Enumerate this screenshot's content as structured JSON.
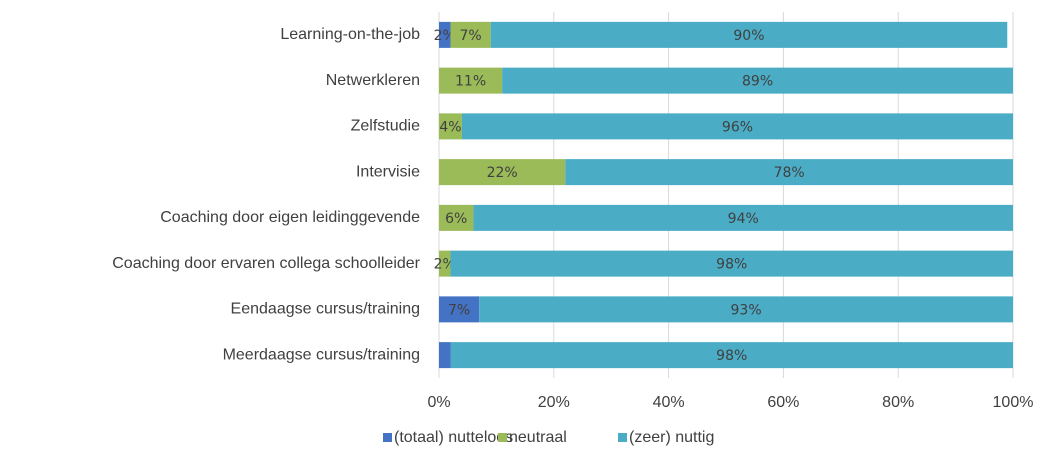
{
  "chart_data": {
    "type": "stacked-bar-horizontal",
    "categories": [
      "Learning-on-the-job",
      "Netwerkleren",
      "Zelfstudie",
      "Intervisie",
      "Coaching door eigen leidinggevende",
      "Coaching door ervaren collega schoolleider",
      "Eendaagse cursus/training",
      "Meerdaagse cursus/training"
    ],
    "series": [
      {
        "name": "(totaal) nutteloos",
        "color": "#4472c4",
        "values": [
          2,
          0,
          0,
          0,
          0,
          0,
          7,
          2
        ],
        "value_labels": [
          "2%",
          null,
          null,
          null,
          null,
          null,
          "7%",
          null
        ]
      },
      {
        "name": "neutraal",
        "color": "#9bbb59",
        "values": [
          7,
          11,
          4,
          22,
          6,
          2,
          0,
          0
        ],
        "value_labels": [
          "7%",
          "11%",
          "4%",
          "22%",
          "6%",
          "2%",
          null,
          null
        ]
      },
      {
        "name": "(zeer) nuttig",
        "color": "#4bacc6",
        "values": [
          90,
          89,
          96,
          78,
          94,
          98,
          93,
          98
        ],
        "value_labels": [
          "90%",
          "89%",
          "96%",
          "78%",
          "94%",
          "98%",
          "93%",
          "98%"
        ]
      }
    ],
    "xlim": [
      0,
      100
    ],
    "xticks": [
      {
        "value": 0,
        "label": "0%"
      },
      {
        "value": 20,
        "label": "20%"
      },
      {
        "value": 40,
        "label": "40%"
      },
      {
        "value": 60,
        "label": "60%"
      },
      {
        "value": 80,
        "label": "80%"
      },
      {
        "value": 100,
        "label": "100%"
      }
    ],
    "grid": true,
    "legend": "bottom"
  }
}
